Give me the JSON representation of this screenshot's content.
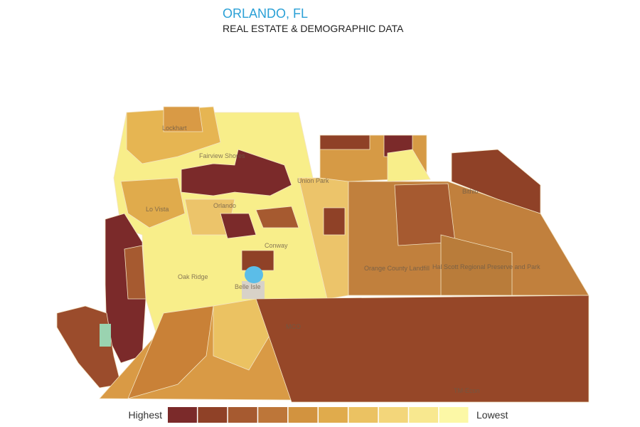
{
  "header": {
    "title": "ORLANDO, FL",
    "subtitle": "REAL ESTATE & DEMOGRAPHIC DATA"
  },
  "map": {
    "labels": [
      "Lockhart",
      "Fairview Shores",
      "Lo Vista",
      "Orlando",
      "Union Park",
      "Conway",
      "Oak Ridge",
      "Belle Isle",
      "Orange County Landfill",
      "Hal Scott Regional Preserve and Park",
      "MCO",
      "Bithlo",
      "TM-Econ"
    ]
  },
  "legend": {
    "high": "Highest",
    "low": "Lowest",
    "colors": [
      "#7b2a2a",
      "#8f4127",
      "#a65a30",
      "#bd7639",
      "#d2933f",
      "#e0ab4c",
      "#ebc262",
      "#f3d67a",
      "#f8e88f",
      "#fcf8a6"
    ]
  }
}
